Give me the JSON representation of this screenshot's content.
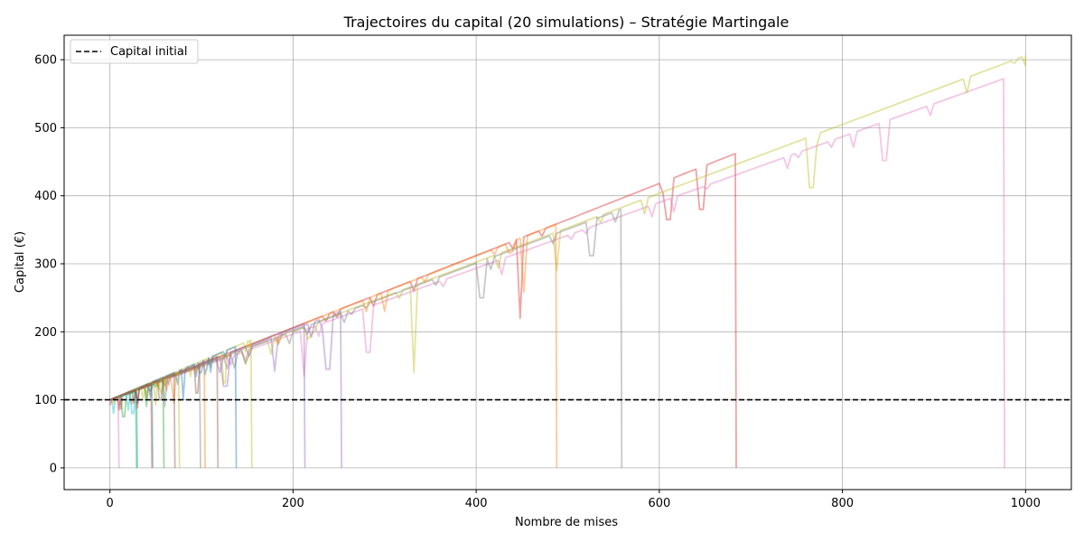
{
  "chart_data": {
    "type": "line",
    "title": "Trajectoires du capital (20 simulations) – Stratégie Martingale",
    "xlabel": "Nombre de mises",
    "ylabel": "Capital (€)",
    "xlim": [
      -50,
      1050
    ],
    "ylim": [
      -32,
      636
    ],
    "xticks": [
      0,
      200,
      400,
      600,
      800,
      1000
    ],
    "yticks": [
      0,
      100,
      200,
      300,
      400,
      500,
      600
    ],
    "grid": true,
    "legend_position": "top-left",
    "legend": [
      {
        "label": "Capital initial",
        "style": "dashed",
        "color": "#000000"
      }
    ],
    "reference_line": {
      "y": 100,
      "label": "Capital initial",
      "color": "#000000"
    },
    "series": [
      {
        "color": "#d62728",
        "ruin": 683,
        "peak": 462,
        "dips": [
          [
            448,
            220
          ],
          [
            610,
            365
          ],
          [
            645,
            380
          ]
        ]
      },
      {
        "color": "#e377c2",
        "ruin": 976,
        "peak": 572,
        "dips": [
          [
            212,
            135
          ],
          [
            283,
            170
          ],
          [
            845,
            452
          ]
        ]
      },
      {
        "color": "#bcbd22",
        "ruin": null,
        "peak": 606,
        "dips": [
          [
            332,
            140
          ],
          [
            766,
            412
          ],
          [
            488,
            290
          ]
        ]
      },
      {
        "color": "#7f7f7f",
        "ruin": 558,
        "peak": 380,
        "dips": [
          [
            405,
            250
          ],
          [
            525,
            312
          ]
        ]
      },
      {
        "color": "#ff7f0e",
        "ruin": 487,
        "peak": 358,
        "dips": [
          [
            300,
            230
          ],
          [
            452,
            258
          ]
        ]
      },
      {
        "color": "#9467bd",
        "ruin": 252,
        "peak": 230,
        "dips": [
          [
            180,
            142
          ],
          [
            238,
            145
          ]
        ]
      },
      {
        "color": "#9467bd",
        "ruin": 212,
        "peak": 212,
        "dips": [
          [
            125,
            120
          ]
        ]
      },
      {
        "color": "#bcbd22",
        "ruin": 154,
        "peak": 188,
        "dips": [
          [
            125,
            125
          ]
        ]
      },
      {
        "color": "#1f77b4",
        "ruin": 137,
        "peak": 178,
        "dips": [
          [
            80,
            100
          ]
        ]
      },
      {
        "color": "#8c564b",
        "ruin": 117,
        "peak": 164,
        "dips": [
          [
            95,
            110
          ]
        ]
      },
      {
        "color": "#ff7f0e",
        "ruin": 103,
        "peak": 152,
        "dips": [
          [
            70,
            95
          ]
        ]
      },
      {
        "color": "#7f7f7f",
        "ruin": 98,
        "peak": 150,
        "dips": [
          [
            60,
            90
          ]
        ]
      },
      {
        "color": "#2ca02c",
        "ruin": 58,
        "peak": 128,
        "dips": [
          [
            40,
            90
          ]
        ]
      },
      {
        "color": "#17becf",
        "ruin": 46,
        "peak": 122,
        "dips": [
          [
            25,
            80
          ]
        ]
      },
      {
        "color": "#2ca02c",
        "ruin": 29,
        "peak": 112,
        "dips": [
          [
            15,
            75
          ]
        ]
      },
      {
        "color": "#e377c2",
        "ruin": 9,
        "peak": 104,
        "dips": []
      },
      {
        "color": "#17becf",
        "ruin": 28,
        "peak": 112,
        "dips": [
          [
            20,
            85
          ]
        ]
      },
      {
        "color": "#bcbd22",
        "ruin": 75,
        "peak": 140,
        "dips": [
          [
            50,
            92
          ]
        ]
      },
      {
        "color": "#d62728",
        "ruin": 45,
        "peak": 122,
        "dips": [
          [
            30,
            88
          ]
        ]
      },
      {
        "color": "#8c564b",
        "ruin": 70,
        "peak": 138,
        "dips": [
          [
            55,
            100
          ]
        ]
      }
    ]
  }
}
